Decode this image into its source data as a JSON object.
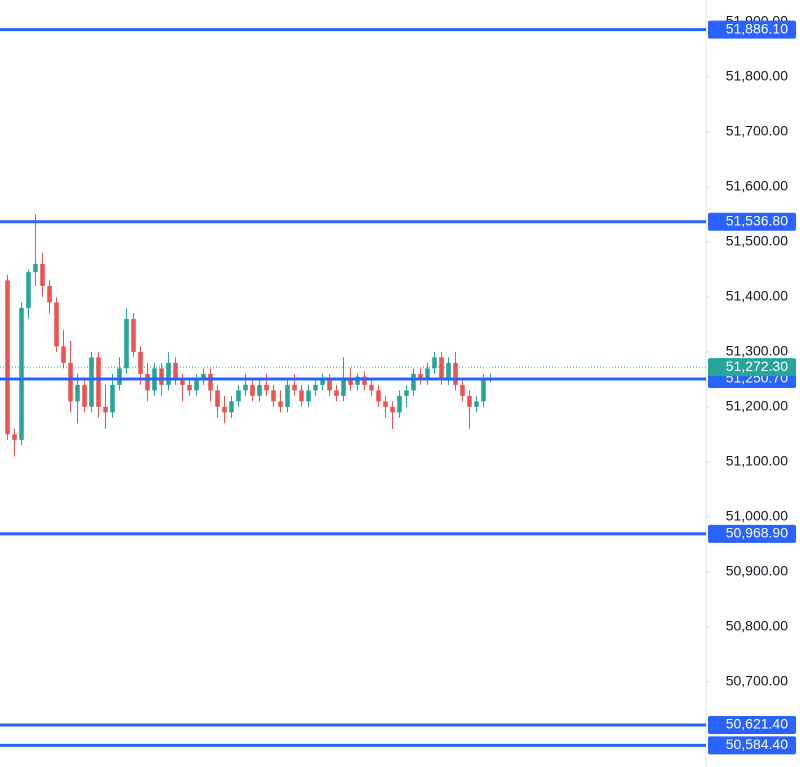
{
  "chart_data": {
    "type": "candlestick",
    "up_color": "#26a69a",
    "down_color": "#ef5350",
    "line_color": "#2962ff",
    "ylim": [
      50545,
      51940
    ],
    "yticks": [
      {
        "value": 50700,
        "label": "50,700.00"
      },
      {
        "value": 50800,
        "label": "50,800.00"
      },
      {
        "value": 50900,
        "label": "50,900.00"
      },
      {
        "value": 51000,
        "label": "51,000.00"
      },
      {
        "value": 51100,
        "label": "51,100.00"
      },
      {
        "value": 51200,
        "label": "51,200.00"
      },
      {
        "value": 51300,
        "label": "51,300.00"
      },
      {
        "value": 51400,
        "label": "51,400.00"
      },
      {
        "value": 51500,
        "label": "51,500.00"
      },
      {
        "value": 51600,
        "label": "51,600.00"
      },
      {
        "value": 51700,
        "label": "51,700.00"
      },
      {
        "value": 51800,
        "label": "51,800.00"
      },
      {
        "value": 51900,
        "label": "51,900.00"
      }
    ],
    "price_lines": [
      {
        "value": 51886.1,
        "label": "51,886.10"
      },
      {
        "value": 51536.8,
        "label": "51,536.80"
      },
      {
        "value": 51250.7,
        "label": "51,250.70"
      },
      {
        "value": 50968.9,
        "label": "50,968.90"
      },
      {
        "value": 50621.4,
        "label": "50,621.40"
      },
      {
        "value": 50584.4,
        "label": "50,584.40"
      }
    ],
    "current_price": {
      "value": 51272.3,
      "label": "51,272.30"
    },
    "open": [
      51430,
      51150,
      51140,
      51380,
      51445,
      51460,
      51420,
      51390,
      51310,
      51280,
      51210,
      51240,
      51200,
      51290,
      51200,
      51190,
      51240,
      51270,
      51360,
      51300,
      51260,
      51230,
      51270,
      51240,
      51280,
      51250,
      51240,
      51230,
      51250,
      51260,
      51230,
      51200,
      51190,
      51210,
      51230,
      51240,
      51220,
      51240,
      51230,
      51210,
      51200,
      51240,
      51230,
      51210,
      51230,
      51240,
      51250,
      51230,
      51220,
      51250,
      51240,
      51255,
      51240,
      51230,
      51210,
      51200,
      51190,
      51220,
      51230,
      51260,
      51250,
      51270,
      51290,
      51250,
      51280,
      51240,
      51220,
      51200,
      51210,
      51250
    ],
    "high": [
      51440,
      51160,
      51390,
      51450,
      51550,
      51480,
      51430,
      51400,
      51340,
      51320,
      51260,
      51250,
      51300,
      51300,
      51240,
      51260,
      51290,
      51380,
      51370,
      51310,
      51280,
      51280,
      51280,
      51300,
      51290,
      51260,
      51250,
      51260,
      51270,
      51270,
      51240,
      51220,
      51220,
      51240,
      51260,
      51250,
      51250,
      51260,
      51240,
      51230,
      51250,
      51260,
      51240,
      51240,
      51250,
      51260,
      51260,
      51240,
      51290,
      51270,
      51260,
      51265,
      51250,
      51240,
      51220,
      51210,
      51230,
      51240,
      51270,
      51270,
      51280,
      51300,
      51300,
      51290,
      51300,
      51250,
      51230,
      51220,
      51260,
      51260
    ],
    "low": [
      51140,
      51110,
      51130,
      51360,
      51420,
      51400,
      51370,
      51300,
      51270,
      51190,
      51170,
      51190,
      51190,
      51180,
      51160,
      51180,
      51230,
      51260,
      51290,
      51240,
      51210,
      51220,
      51220,
      51230,
      51240,
      51210,
      51220,
      51220,
      51240,
      51210,
      51180,
      51170,
      51180,
      51200,
      51220,
      51210,
      51210,
      51220,
      51200,
      51190,
      51190,
      51220,
      51200,
      51200,
      51220,
      51230,
      51220,
      51210,
      51210,
      51230,
      51230,
      51230,
      51220,
      51200,
      51180,
      51160,
      51180,
      51200,
      51220,
      51240,
      51240,
      51260,
      51240,
      51240,
      51230,
      51210,
      51160,
      51190,
      51200,
      51245
    ],
    "close": [
      51150,
      51140,
      51380,
      51445,
      51460,
      51420,
      51390,
      51310,
      51280,
      51210,
      51240,
      51200,
      51290,
      51200,
      51190,
      51240,
      51270,
      51360,
      51300,
      51260,
      51230,
      51270,
      51240,
      51280,
      51250,
      51240,
      51230,
      51250,
      51260,
      51230,
      51200,
      51190,
      51210,
      51230,
      51240,
      51220,
      51240,
      51230,
      51210,
      51200,
      51240,
      51230,
      51210,
      51230,
      51240,
      51250,
      51230,
      51220,
      51250,
      51240,
      51255,
      51240,
      51230,
      51210,
      51200,
      51190,
      51220,
      51230,
      51260,
      51250,
      51270,
      51290,
      51250,
      51280,
      51240,
      51220,
      51200,
      51210,
      51250,
      51252
    ]
  }
}
